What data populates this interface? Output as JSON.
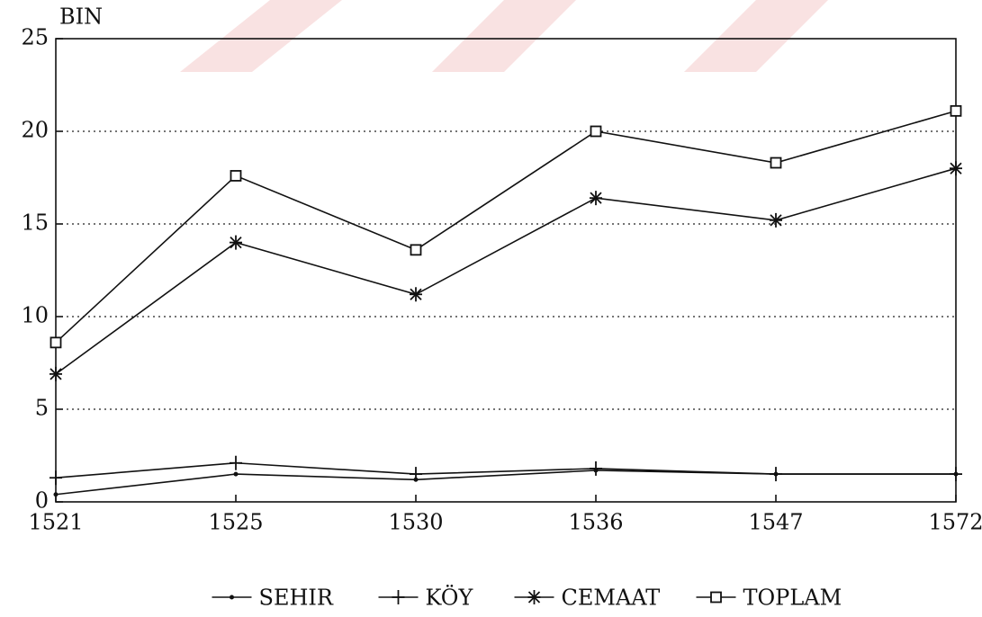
{
  "chart_data": {
    "type": "line",
    "ylabel": "BIN",
    "categories": [
      "1521",
      "1525",
      "1530",
      "1536",
      "1547",
      "1572"
    ],
    "series": [
      {
        "name": "SEHIR",
        "color": "#111111",
        "marker": "dot",
        "values": [
          0.4,
          1.5,
          1.2,
          1.7,
          1.5,
          1.5
        ]
      },
      {
        "name": "KÖY",
        "color": "#111111",
        "marker": "plus",
        "values": [
          1.3,
          2.1,
          1.5,
          1.8,
          1.5,
          1.5
        ]
      },
      {
        "name": "CEMAAT",
        "color": "#111111",
        "marker": "asterisk",
        "values": [
          6.9,
          14.0,
          11.2,
          16.4,
          15.2,
          18.0
        ]
      },
      {
        "name": "TOPLAM",
        "color": "#111111",
        "marker": "square",
        "values": [
          8.6,
          17.6,
          13.6,
          20.0,
          18.3,
          21.1
        ]
      }
    ],
    "ylim": [
      0,
      25
    ],
    "yticks": [
      0,
      5,
      10,
      15,
      20,
      25
    ],
    "grid": true,
    "legend": "bottom"
  }
}
